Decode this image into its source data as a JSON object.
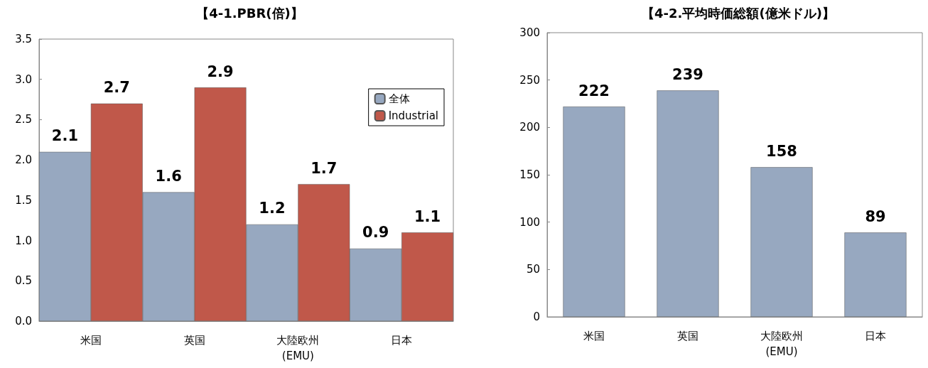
{
  "chart_data": [
    {
      "type": "bar",
      "title": "【4-1.PBR(倍)】",
      "categories": [
        "米国",
        "英国",
        "大陸欧州\n(EMU)",
        "日本"
      ],
      "series": [
        {
          "name": "全体",
          "color": "#97a8c0",
          "values": [
            2.1,
            1.6,
            1.2,
            0.9
          ]
        },
        {
          "name": "Industrial",
          "color": "#c0584a",
          "values": [
            2.7,
            2.9,
            1.7,
            1.1
          ]
        }
      ],
      "ylim": [
        0,
        3.5
      ],
      "yticks": [
        {
          "value": 0,
          "label": "0.0"
        },
        0.5,
        {
          "value": 1,
          "label": "1.0"
        },
        1.5,
        {
          "value": 2,
          "label": "2.0"
        },
        2.5,
        {
          "value": 3,
          "label": "3.0"
        },
        3.5
      ],
      "data_labels": true,
      "legend": "top right",
      "grid": false
    },
    {
      "type": "bar",
      "title": "【4-2.平均時価総額(億米ドル)】",
      "categories": [
        "米国",
        "英国",
        "大陸欧州\n(EMU)",
        "日本"
      ],
      "series": [
        {
          "color": "#97a8c0",
          "values": [
            222,
            239,
            158,
            89
          ]
        }
      ],
      "ylim": [
        0,
        300
      ],
      "yticks": [
        0,
        50,
        100,
        150,
        200,
        250,
        300
      ],
      "data_labels": true,
      "grid": false
    }
  ]
}
